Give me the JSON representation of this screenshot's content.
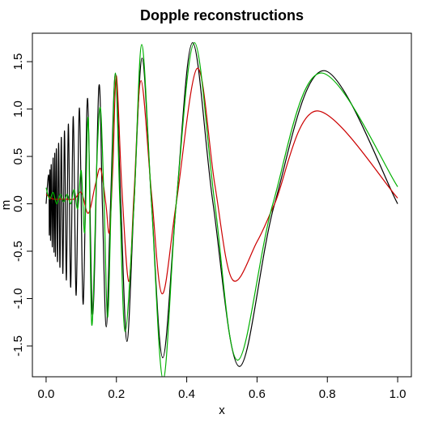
{
  "chart_data": {
    "type": "line",
    "title": "Dopple reconstructions",
    "xlabel": "x",
    "ylabel": "m",
    "xlim": [
      -0.039,
      1.039
    ],
    "ylim": [
      -1.825,
      1.8
    ],
    "xticks": [
      {
        "value": 0,
        "label": "0.0"
      },
      0.2,
      0.4,
      0.6,
      0.8,
      {
        "value": 1,
        "label": "1.0"
      }
    ],
    "yticks": [
      {
        "value": -1.5,
        "label": "-1.5"
      },
      {
        "value": -1,
        "label": "-1.0"
      },
      {
        "value": -0.5,
        "label": "-0.5"
      },
      {
        "value": 0,
        "label": "0.0"
      },
      {
        "value": 0.5,
        "label": "0.5"
      },
      {
        "value": 1,
        "label": "1.0"
      },
      {
        "value": 1.5,
        "label": "1.5"
      }
    ],
    "grid": false,
    "series": [
      {
        "color": "#000000",
        "x": [
          0,
          0.0075,
          0.0092,
          0.0109,
          0.0127,
          0.0146,
          0.0177,
          0.02,
          0.0224,
          0.0245,
          0.0264,
          0.0292,
          0.0324,
          0.0357,
          0.0394,
          0.0433,
          0.0477,
          0.0524,
          0.0577,
          0.0635,
          0.07,
          0.0773,
          0.0855,
          0.0948,
          0.1056,
          0.118,
          0.1326,
          0.15,
          0.16,
          0.1711,
          0.1833,
          0.1971,
          0.2125,
          0.23,
          0.25,
          0.2731,
          0.3,
          0.3318,
          0.37,
          0.4167,
          0.475,
          0.55,
          0.65,
          0.79,
          1
        ],
        "values": [
          0,
          0.298,
          -0.33,
          0.358,
          -0.386,
          0.414,
          -0.455,
          0.483,
          -0.51,
          0.534,
          -0.554,
          0.581,
          -0.611,
          0.64,
          -0.671,
          0.702,
          -0.735,
          0.769,
          -0.805,
          0.842,
          -0.88,
          0.921,
          -0.965,
          1.011,
          -1.06,
          1.113,
          -1.17,
          1.232,
          0,
          -1.299,
          0,
          1.372,
          0,
          -1.452,
          0,
          1.537,
          0,
          -1.625,
          0,
          1.7,
          0,
          -1.716,
          0,
          1.405,
          0
        ]
      },
      {
        "color": "#cc0000",
        "x": [
          0,
          0.02,
          0.05,
          0.08,
          0.1,
          0.12,
          0.14,
          0.155,
          0.17,
          0.18,
          0.19,
          0.2,
          0.215,
          0.235,
          0.25,
          0.27,
          0.3,
          0.33,
          0.37,
          0.43,
          0.48,
          0.53,
          0.6,
          0.65,
          0.77,
          1
        ],
        "values": [
          0.1,
          0.05,
          0.05,
          0.05,
          0.12,
          -0.1,
          0.2,
          0.37,
          0,
          -0.3,
          0.4,
          1.35,
          0.2,
          -0.82,
          0.1,
          1.3,
          0.1,
          -0.95,
          0,
          1.43,
          0.2,
          -0.8,
          -0.4,
          0,
          0.98,
          0.06
        ]
      },
      {
        "color": "#00b000",
        "x": [
          0,
          0.01,
          0.02,
          0.03,
          0.04,
          0.05,
          0.06,
          0.07,
          0.08,
          0.09,
          0.1,
          0.11,
          0.12,
          0.13,
          0.145,
          0.155,
          0.165,
          0.175,
          0.185,
          0.197,
          0.21,
          0.225,
          0.25,
          0.272,
          0.3,
          0.333,
          0.37,
          0.422,
          0.48,
          0.545,
          0.645,
          0.78,
          1
        ],
        "values": [
          0.17,
          0.05,
          0.12,
          0,
          0.1,
          0.02,
          0.1,
          0,
          0.15,
          -0.05,
          0.35,
          -0.3,
          0.9,
          -1.28,
          0.5,
          1,
          0,
          -1.2,
          0,
          1.38,
          0,
          -1.35,
          0,
          1.68,
          0,
          -1.85,
          0,
          1.7,
          0,
          -1.65,
          0,
          1.38,
          0.18
        ]
      }
    ]
  }
}
